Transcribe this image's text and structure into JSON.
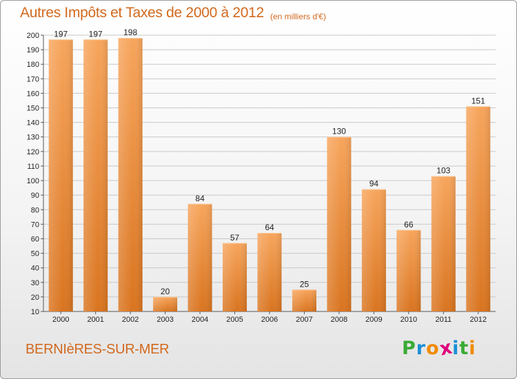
{
  "title": "Autres Impôts et Taxes de 2000 à 2012",
  "subtitle": "(en milliers d'€)",
  "commune": "BERNIèRES-SUR-MER",
  "logo": {
    "letters": [
      "P",
      "r",
      "o",
      "x",
      "i",
      "t",
      "i"
    ],
    "colors": [
      "#3aaa35",
      "#1a8fd6",
      "#f08a00",
      "#e0007a",
      "#1a8fd6",
      "#3aaa35",
      "#f08a00"
    ]
  },
  "colors": {
    "bar_light": "#f7a55c",
    "bar_dark": "#d9741f",
    "accent_text": "#d2691e"
  },
  "chart_data": {
    "type": "bar",
    "categories": [
      "2000",
      "2001",
      "2002",
      "2003",
      "2004",
      "2005",
      "2006",
      "2007",
      "2008",
      "2009",
      "2010",
      "2011",
      "2012"
    ],
    "values": [
      197,
      197,
      198,
      20,
      84,
      57,
      64,
      25,
      130,
      94,
      66,
      103,
      151
    ],
    "ylim": [
      10,
      200
    ],
    "yticks": [
      10,
      20,
      30,
      40,
      50,
      60,
      70,
      80,
      90,
      100,
      110,
      120,
      130,
      140,
      150,
      160,
      170,
      180,
      190,
      200
    ],
    "grid": true,
    "xlabel": "",
    "ylabel": ""
  }
}
